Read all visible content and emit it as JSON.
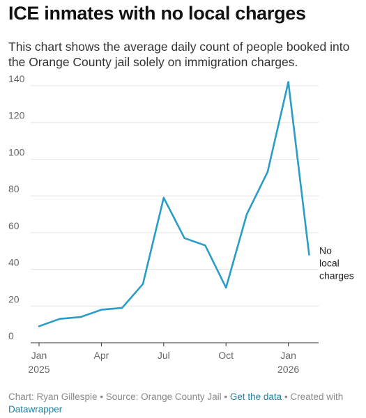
{
  "header": {
    "title": "ICE inmates with no local charges",
    "subtitle": "This chart shows the average daily count of people booked into the Orange County jail solely on immigration charges."
  },
  "chart_data": {
    "type": "line",
    "x": [
      "2025-01",
      "2025-02",
      "2025-03",
      "2025-04",
      "2025-05",
      "2025-06",
      "2025-07",
      "2025-08",
      "2025-09",
      "2025-10",
      "2025-11",
      "2025-12",
      "2026-01",
      "2026-02"
    ],
    "x_tick_labels": [
      {
        "month": "2025-01",
        "lines": [
          "Jan",
          "2025"
        ]
      },
      {
        "month": "2025-04",
        "lines": [
          "Apr"
        ]
      },
      {
        "month": "2025-07",
        "lines": [
          "Jul"
        ]
      },
      {
        "month": "2025-10",
        "lines": [
          "Oct"
        ]
      },
      {
        "month": "2026-01",
        "lines": [
          "Jan",
          "2026"
        ]
      }
    ],
    "series": [
      {
        "name": "No local charges",
        "values": [
          9,
          13,
          14,
          18,
          19,
          32,
          79,
          57,
          53,
          30,
          70,
          93,
          142,
          48
        ],
        "color": "#2a9dc6"
      }
    ],
    "series_label_lines": [
      "No",
      "local",
      "charges"
    ],
    "ylim": [
      0,
      140
    ],
    "y_ticks": [
      0,
      20,
      40,
      60,
      80,
      100,
      120,
      140
    ],
    "grid": true,
    "xlabel": "",
    "ylabel": ""
  },
  "footer": {
    "credit": "Chart: Ryan Gillespie",
    "sep": " • ",
    "source": "Source: Orange County Jail",
    "data_link": "Get the data",
    "created": "Created with",
    "tool_link": "Datawrapper"
  }
}
